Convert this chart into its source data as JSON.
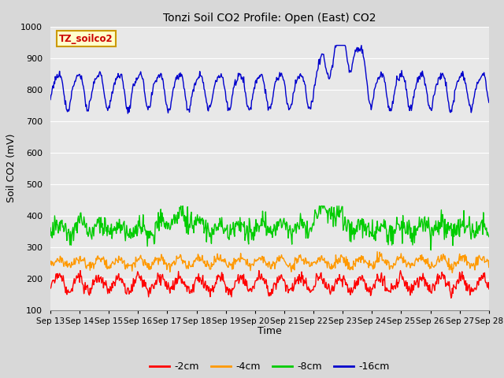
{
  "title": "Tonzi Soil CO2 Profile: Open (East) CO2",
  "ylabel": "Soil CO2 (mV)",
  "xlabel": "Time",
  "ylim": [
    100,
    1000
  ],
  "xlim_days": 15,
  "xtick_labels": [
    "Sep 13",
    "Sep 14",
    "Sep 15",
    "Sep 16",
    "Sep 17",
    "Sep 18",
    "Sep 19",
    "Sep 20",
    "Sep 21",
    "Sep 22",
    "Sep 23",
    "Sep 24",
    "Sep 25",
    "Sep 26",
    "Sep 27",
    "Sep 28"
  ],
  "ytick_values": [
    100,
    200,
    300,
    400,
    500,
    600,
    700,
    800,
    900,
    1000
  ],
  "fig_facecolor": "#d8d8d8",
  "plot_bg_color": "#e8e8e8",
  "grid_color": "#ffffff",
  "legend_label": "TZ_soilco2",
  "legend_box_facecolor": "#ffffcc",
  "legend_box_edgecolor": "#cc9900",
  "series_labels": [
    "-2cm",
    "-4cm",
    "-8cm",
    "-16cm"
  ],
  "series_colors": [
    "#ff0000",
    "#ff9900",
    "#00cc00",
    "#0000cc"
  ],
  "line_width": 1.0,
  "n_points": 720
}
